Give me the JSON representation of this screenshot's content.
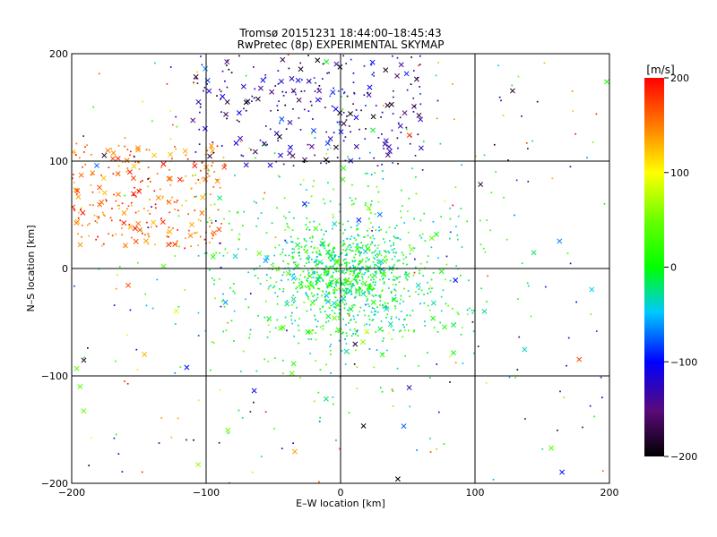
{
  "chart_data": {
    "type": "scatter",
    "title": "Tromsø 20151231 18:44:00–18:45:43",
    "subtitle": "RwPretec (8p) EXPERIMENTAL SKYMAP",
    "xlabel": "E–W location [km]",
    "ylabel": "N–S location [km]",
    "xlim": [
      -200,
      200
    ],
    "ylim": [
      -200,
      200
    ],
    "x_ticks": [
      -200,
      -100,
      0,
      100,
      200
    ],
    "y_ticks": [
      -200,
      -100,
      0,
      100,
      200
    ],
    "grid": true,
    "colorbar": {
      "label": "[m/s]",
      "range": [
        -200,
        200
      ],
      "ticks": [
        200,
        100,
        0,
        -100,
        -200
      ],
      "colormap": "rainbow: black(-200) → purple → blue → cyan → green(0) → yellow → orange → red(200)"
    },
    "markers": {
      "small": "dot (meteor echo)",
      "large": "x (larger echo)"
    },
    "clusters": [
      {
        "description": "dark/purple/blue echoes, negative velocity",
        "x_range": [
          -110,
          60
        ],
        "y_range": [
          95,
          200
        ],
        "velocity_range": [
          -200,
          -80
        ],
        "count": 260,
        "x_share": 0.3
      },
      {
        "description": "red/orange echoes, positive velocity",
        "x_range": [
          -200,
          -85
        ],
        "y_range": [
          20,
          115
        ],
        "velocity_range": [
          120,
          200
        ],
        "count": 280,
        "x_share": 0.25
      },
      {
        "description": "dense green/cyan core near origin",
        "center": [
          5,
          -8
        ],
        "spread": [
          22,
          22
        ],
        "velocity_range": [
          -60,
          40
        ],
        "count": 650,
        "x_share": 0.08
      },
      {
        "description": "broader green halo around origin",
        "center": [
          0,
          -10
        ],
        "spread": [
          55,
          48
        ],
        "velocity_range": [
          -60,
          60
        ],
        "count": 600,
        "x_share": 0.08
      },
      {
        "description": "sparse background echoes, mixed velocities",
        "x_range": [
          -200,
          200
        ],
        "y_range": [
          -200,
          200
        ],
        "velocity_range": [
          -200,
          200
        ],
        "count": 280,
        "x_share": 0.15
      }
    ]
  }
}
